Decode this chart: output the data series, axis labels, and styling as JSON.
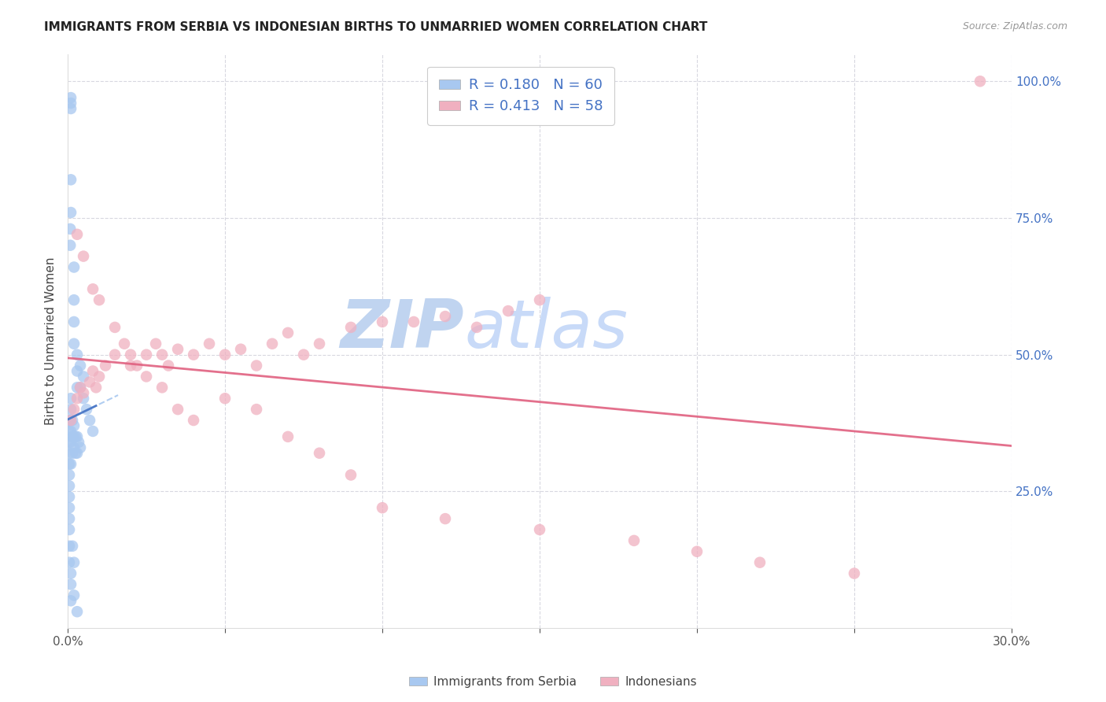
{
  "title": "IMMIGRANTS FROM SERBIA VS INDONESIAN BIRTHS TO UNMARRIED WOMEN CORRELATION CHART",
  "source": "Source: ZipAtlas.com",
  "ylabel": "Births to Unmarried Women",
  "watermark_part1": "ZIP",
  "watermark_part2": "atlas",
  "x_min": 0.0,
  "x_max": 0.3,
  "y_min": 0.0,
  "y_max": 1.05,
  "y_ticks_right": [
    0.0,
    0.25,
    0.5,
    0.75,
    1.0
  ],
  "y_tick_labels_right": [
    "",
    "25.0%",
    "50.0%",
    "75.0%",
    "100.0%"
  ],
  "serbia_color": "#a8c8f0",
  "indonesian_color": "#f0b0c0",
  "serbia_trend_color": "#4472c4",
  "serbian_trend_dashed_color": "#a8c8f0",
  "indonesian_trend_color": "#e06080",
  "grid_color": "#d8d8e0",
  "background_color": "#ffffff",
  "watermark_color1": "#c0d4f0",
  "watermark_color2": "#c8daf8",
  "serbia_x": [
    0.001,
    0.001,
    0.001,
    0.001,
    0.001,
    0.0008,
    0.0008,
    0.002,
    0.002,
    0.002,
    0.002,
    0.003,
    0.003,
    0.003,
    0.004,
    0.004,
    0.005,
    0.005,
    0.006,
    0.007,
    0.008,
    0.0005,
    0.0005,
    0.0005,
    0.0005,
    0.0005,
    0.0005,
    0.0005,
    0.0005,
    0.001,
    0.001,
    0.001,
    0.001,
    0.001,
    0.001,
    0.0015,
    0.0015,
    0.0015,
    0.002,
    0.002,
    0.002,
    0.0025,
    0.0025,
    0.003,
    0.003,
    0.0035,
    0.004,
    0.0005,
    0.0005,
    0.0005,
    0.0005,
    0.0005,
    0.001,
    0.001,
    0.001,
    0.0015,
    0.002,
    0.002,
    0.003
  ],
  "serbia_y": [
    0.97,
    0.96,
    0.95,
    0.82,
    0.76,
    0.73,
    0.7,
    0.66,
    0.6,
    0.56,
    0.52,
    0.5,
    0.47,
    0.44,
    0.48,
    0.44,
    0.46,
    0.42,
    0.4,
    0.38,
    0.36,
    0.38,
    0.36,
    0.34,
    0.32,
    0.3,
    0.28,
    0.26,
    0.24,
    0.42,
    0.4,
    0.38,
    0.36,
    0.34,
    0.3,
    0.38,
    0.35,
    0.32,
    0.37,
    0.35,
    0.33,
    0.35,
    0.32,
    0.35,
    0.32,
    0.34,
    0.33,
    0.22,
    0.2,
    0.18,
    0.15,
    0.12,
    0.1,
    0.08,
    0.05,
    0.15,
    0.12,
    0.06,
    0.03
  ],
  "indonesian_x": [
    0.001,
    0.002,
    0.003,
    0.004,
    0.005,
    0.007,
    0.008,
    0.009,
    0.01,
    0.012,
    0.015,
    0.018,
    0.02,
    0.022,
    0.025,
    0.028,
    0.03,
    0.032,
    0.035,
    0.04,
    0.045,
    0.05,
    0.055,
    0.06,
    0.065,
    0.07,
    0.075,
    0.08,
    0.09,
    0.1,
    0.11,
    0.12,
    0.13,
    0.14,
    0.15,
    0.003,
    0.005,
    0.008,
    0.01,
    0.015,
    0.02,
    0.025,
    0.03,
    0.035,
    0.04,
    0.05,
    0.06,
    0.07,
    0.08,
    0.09,
    0.1,
    0.12,
    0.15,
    0.18,
    0.2,
    0.22,
    0.25,
    0.29
  ],
  "indonesian_y": [
    0.38,
    0.4,
    0.42,
    0.44,
    0.43,
    0.45,
    0.47,
    0.44,
    0.46,
    0.48,
    0.5,
    0.52,
    0.5,
    0.48,
    0.5,
    0.52,
    0.5,
    0.48,
    0.51,
    0.5,
    0.52,
    0.5,
    0.51,
    0.48,
    0.52,
    0.54,
    0.5,
    0.52,
    0.55,
    0.56,
    0.56,
    0.57,
    0.55,
    0.58,
    0.6,
    0.72,
    0.68,
    0.62,
    0.6,
    0.55,
    0.48,
    0.46,
    0.44,
    0.4,
    0.38,
    0.42,
    0.4,
    0.35,
    0.32,
    0.28,
    0.22,
    0.2,
    0.18,
    0.16,
    0.14,
    0.12,
    0.1,
    1.0
  ]
}
